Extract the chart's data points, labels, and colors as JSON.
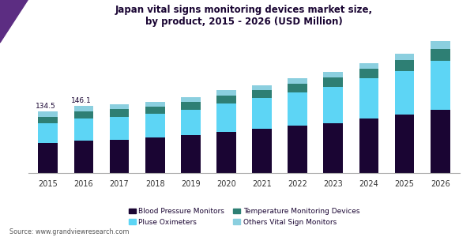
{
  "title": "Japan vital signs monitoring devices market size,\nby product, 2015 - 2026 (USD Million)",
  "years": [
    2015,
    2016,
    2017,
    2018,
    2019,
    2020,
    2021,
    2022,
    2023,
    2024,
    2025,
    2026
  ],
  "blood_pressure": [
    65,
    70,
    73,
    77,
    83,
    90,
    97,
    103,
    109,
    118,
    127,
    137
  ],
  "pulse_oximeters": [
    44,
    48,
    50,
    52,
    55,
    62,
    66,
    73,
    79,
    88,
    95,
    108
  ],
  "temperature": [
    14,
    16,
    16,
    16,
    17,
    17,
    18,
    18,
    20,
    22,
    24,
    26
  ],
  "others": [
    11.5,
    12.1,
    10,
    10,
    10,
    11,
    11,
    12,
    12,
    12,
    14,
    16
  ],
  "annotations": [
    {
      "year_idx": 0,
      "label": "134.5"
    },
    {
      "year_idx": 1,
      "label": "146.1"
    }
  ],
  "colors": {
    "blood_pressure": "#1a0533",
    "pulse_oximeters": "#5dd5f5",
    "temperature": "#2e7f74",
    "others": "#8bcfdf"
  },
  "legend_labels": [
    "Blood Pressure Monitors",
    "Pluse Oximeters",
    "Temperature Monitoring Devices",
    "Others Vital Sign Monitors"
  ],
  "legend_colors_order": [
    "blood_pressure",
    "pulse_oximeters",
    "temperature",
    "others"
  ],
  "source_text": "Source: www.grandviewresearch.com",
  "title_color": "#1a0533",
  "background_color": "#ffffff",
  "header_bar_color": "#5c2d82",
  "header_line_color": "#5c2d82",
  "ylim": [
    0,
    310
  ],
  "bar_width": 0.55
}
